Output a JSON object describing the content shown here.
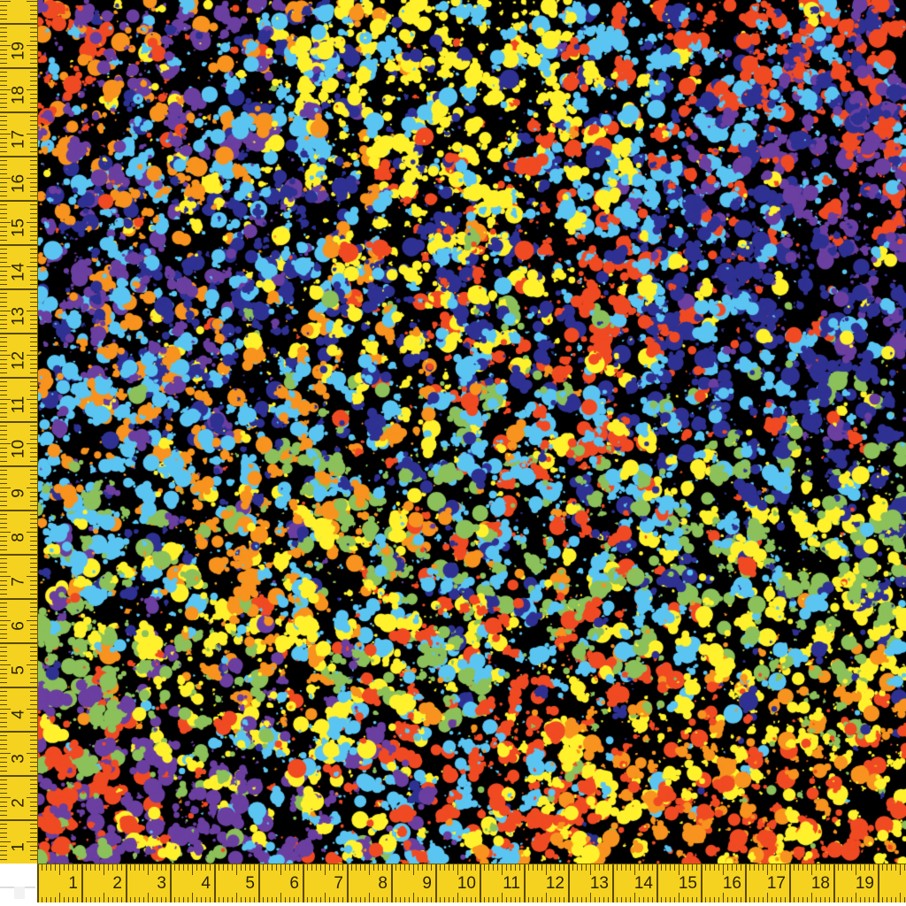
{
  "image": {
    "palette": {
      "background": "#000000",
      "orange": "#f7931e",
      "red": "#f04a23",
      "purple": "#6a3fa0",
      "navy": "#2e3192",
      "light_blue": "#5bc5f2",
      "yellow": "#fff22d",
      "green": "#8cc05a"
    }
  },
  "ruler": {
    "color": "#f5d21f",
    "unit_icon": "tape-measure-icon",
    "left_labels": [
      "1",
      "2",
      "3",
      "4",
      "5",
      "6",
      "7",
      "8",
      "9",
      "10",
      "11",
      "12",
      "13",
      "14",
      "15",
      "16",
      "17",
      "18",
      "19"
    ],
    "bottom_labels": [
      "1",
      "2",
      "3",
      "4",
      "5",
      "6",
      "7",
      "8",
      "9",
      "10",
      "11",
      "12",
      "13",
      "14",
      "15",
      "16",
      "17",
      "18",
      "19",
      "2"
    ]
  }
}
